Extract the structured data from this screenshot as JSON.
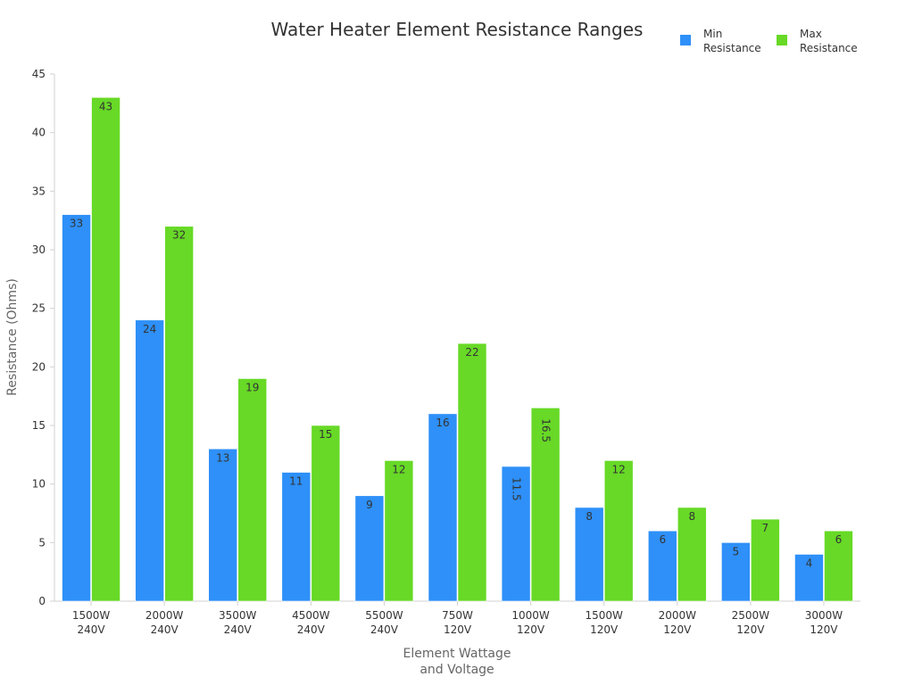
{
  "chart_data": {
    "type": "bar",
    "title": "Water Heater Element Resistance Ranges",
    "xlabel": [
      "Element Wattage",
      "and Voltage"
    ],
    "ylabel": "Resistance (Ohms)",
    "ylim": [
      0,
      45
    ],
    "yticks": [
      0,
      5,
      10,
      15,
      20,
      25,
      30,
      35,
      40,
      45
    ],
    "grid": false,
    "legend_position": "top-right",
    "categories": [
      [
        "1500W",
        "240V"
      ],
      [
        "2000W",
        "240V"
      ],
      [
        "3500W",
        "240V"
      ],
      [
        "4500W",
        "240V"
      ],
      [
        "5500W",
        "240V"
      ],
      [
        "750W",
        "120V"
      ],
      [
        "1000W",
        "120V"
      ],
      [
        "1500W",
        "120V"
      ],
      [
        "2000W",
        "120V"
      ],
      [
        "2500W",
        "120V"
      ],
      [
        "3000W",
        "120V"
      ]
    ],
    "series": [
      {
        "name": [
          "Min",
          "Resistance"
        ],
        "color": "#2e90f8",
        "values": [
          33,
          24,
          13,
          11,
          9,
          16,
          11.5,
          8,
          6,
          5,
          4
        ],
        "labels": [
          "33",
          "24",
          "13",
          "11",
          "9",
          "16",
          "11.5",
          "8",
          "6",
          "5",
          "4"
        ]
      },
      {
        "name": [
          "Max",
          "Resistance"
        ],
        "color": "#67d926",
        "values": [
          43,
          32,
          19,
          15,
          12,
          22,
          16.5,
          12,
          8,
          7,
          6
        ],
        "labels": [
          "43",
          "32",
          "19",
          "15",
          "12",
          "22",
          "16.5",
          "12",
          "8",
          "7",
          "6"
        ]
      }
    ]
  }
}
